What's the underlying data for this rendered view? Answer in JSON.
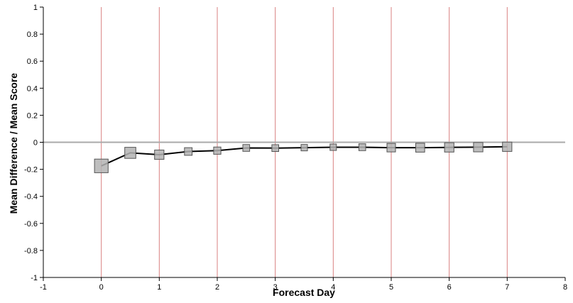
{
  "chart_data": {
    "type": "line",
    "title": "",
    "xlabel": "Forecast Day",
    "ylabel": "Mean Difference / Mean Score",
    "xlim": [
      -1,
      8
    ],
    "ylim": [
      -1,
      1
    ],
    "x_ticks": [
      -1,
      0,
      1,
      2,
      3,
      4,
      5,
      6,
      7,
      8
    ],
    "y_ticks": [
      -1,
      -0.8,
      -0.6,
      -0.4,
      -0.2,
      0,
      0.2,
      0.4,
      0.6,
      0.8,
      1
    ],
    "x_tick_labels": [
      "-1",
      "0",
      "1",
      "2",
      "3",
      "4",
      "5",
      "6",
      "7",
      "8"
    ],
    "y_tick_labels": [
      "-1",
      "-0.8",
      "-0.6",
      "-0.4",
      "-0.2",
      "0",
      "0.2",
      "0.4",
      "0.6",
      "0.8",
      "1"
    ],
    "vertical_reference_lines": [
      0,
      1,
      2,
      3,
      4,
      5,
      6,
      7
    ],
    "horizontal_reference_line": 0,
    "grid": false,
    "legend": "none",
    "colors": {
      "line": "#000000",
      "marker_fill": "#b3b3b3",
      "marker_stroke": "#555555",
      "vertical_lines": "#d98080",
      "zero_line": "#aaaaaa",
      "axis": "#000000"
    },
    "series": [
      {
        "x": [
          0,
          0.5,
          1,
          1.5,
          2,
          2.5,
          3,
          3.5,
          4,
          4.5,
          5,
          5.5,
          6,
          6.5,
          7
        ],
        "y": [
          -0.175,
          -0.078,
          -0.092,
          -0.068,
          -0.062,
          -0.042,
          -0.043,
          -0.04,
          -0.037,
          -0.037,
          -0.04,
          -0.04,
          -0.038,
          -0.036,
          -0.033
        ],
        "marker_size": [
          1.6,
          1.3,
          1.1,
          0.9,
          0.85,
          0.8,
          0.8,
          0.75,
          0.75,
          0.8,
          1.0,
          1.05,
          1.1,
          1.1,
          1.1
        ]
      }
    ]
  }
}
